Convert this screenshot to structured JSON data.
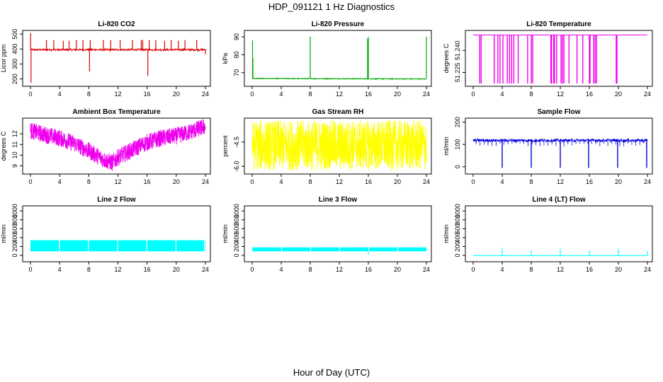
{
  "figure": {
    "title": "HDP_091121  1 Hz Diagnostics",
    "xlabel": "Hour of Day (UTC)"
  },
  "chart_data": [
    {
      "type": "line",
      "title": "Li-820 CO2",
      "ylabel": "Licor ppm",
      "color": "#dd0000",
      "xlim": [
        0,
        24
      ],
      "ylim": [
        170,
        505
      ],
      "xticks": [
        "0",
        "4",
        "8",
        "12",
        "16",
        "20",
        "24"
      ],
      "yticks": [
        {
          "v": 200,
          "l": "200"
        },
        {
          "v": 300,
          "l": "300"
        },
        {
          "v": 400,
          "l": "400"
        },
        {
          "v": 500,
          "l": "500"
        }
      ],
      "series": [
        {
          "baseline": 395,
          "noise": 6,
          "trend": 0,
          "spikes": [
            [
              0.02,
              505
            ],
            [
              0.08,
              175
            ],
            [
              2.2,
              460
            ],
            [
              3.2,
              460
            ],
            [
              4.5,
              455
            ],
            [
              5.3,
              455
            ],
            [
              6.3,
              460
            ],
            [
              7.2,
              460
            ],
            [
              8.1,
              250
            ],
            [
              8.2,
              460
            ],
            [
              10.0,
              460
            ],
            [
              11.0,
              460
            ],
            [
              12.3,
              460
            ],
            [
              14.0,
              460
            ],
            [
              15.2,
              460
            ],
            [
              15.4,
              460
            ],
            [
              16.1,
              220
            ],
            [
              16.3,
              460
            ],
            [
              17.2,
              460
            ],
            [
              18.4,
              455
            ],
            [
              19.3,
              460
            ],
            [
              20.3,
              455
            ],
            [
              21.2,
              460
            ],
            [
              22.8,
              460
            ],
            [
              24.0,
              365
            ]
          ]
        }
      ]
    },
    {
      "type": "line",
      "title": "Li-820 Pressure",
      "ylabel": "kPa",
      "color": "#00aa00",
      "xlim": [
        0,
        24
      ],
      "ylim": [
        64,
        92
      ],
      "xticks": [
        "0",
        "4",
        "8",
        "12",
        "16",
        "20",
        "24"
      ],
      "yticks": [
        {
          "v": 70,
          "l": "70"
        },
        {
          "v": 80,
          "l": "80"
        },
        {
          "v": 90,
          "l": "90"
        }
      ],
      "series": [
        {
          "baseline": 66.8,
          "noise": 0.25,
          "trend": -0.3,
          "spikes": [
            [
              0.05,
              88
            ],
            [
              0.1,
              78
            ],
            [
              8.0,
              90
            ],
            [
              15.9,
              89
            ],
            [
              16.0,
              90
            ],
            [
              24.0,
              90
            ]
          ]
        }
      ]
    },
    {
      "type": "line",
      "title": "Li-820 Temperature",
      "ylabel": "degrees C",
      "color": "#ee00ee",
      "xlim": [
        0,
        24
      ],
      "ylim": [
        51.2175,
        51.2517
      ],
      "xticks": [
        "0",
        "4",
        "8",
        "12",
        "16",
        "20",
        "24"
      ],
      "yticks": [
        {
          "v": 51.225,
          "l": "51.225"
        },
        {
          "v": 51.24,
          "l": "51.240"
        }
      ],
      "series": [
        {
          "baseline": 51.2505,
          "noise": 5e-05,
          "trend": 0,
          "dips": [
            0.9,
            1.1,
            2.9,
            3.4,
            3.7,
            4.1,
            4.7,
            5.0,
            5.3,
            5.6,
            6.2,
            7.5,
            8.0,
            8.2,
            10.7,
            10.8,
            11.1,
            11.2,
            11.5,
            12.1,
            12.3,
            12.5,
            13.2,
            14.3,
            15.1,
            16.0,
            16.1,
            16.6,
            16.8,
            17.0,
            19.7,
            19.8
          ],
          "dipTo": 51.2175
        }
      ]
    },
    {
      "type": "line",
      "title": "Ambient Box Temperature",
      "ylabel": "degrees C",
      "color": "#ee00ee",
      "xlim": [
        0,
        24
      ],
      "ylim": [
        8.5,
        13.2
      ],
      "xticks": [
        "0",
        "4",
        "8",
        "12",
        "16",
        "20",
        "24"
      ],
      "yticks": [
        {
          "v": 9,
          "l": "9"
        },
        {
          "v": 10,
          "l": "10"
        },
        {
          "v": 11,
          "l": "11"
        },
        {
          "v": 12,
          "l": "12"
        }
      ],
      "series": [
        {
          "profile": [
            [
              0,
              12.3
            ],
            [
              2,
              11.9
            ],
            [
              4,
              11.6
            ],
            [
              6,
              11.1
            ],
            [
              8,
              10.4
            ],
            [
              10,
              9.6
            ],
            [
              11.2,
              9.3
            ],
            [
              12,
              9.8
            ],
            [
              14,
              10.5
            ],
            [
              16,
              11.2
            ],
            [
              18,
              11.6
            ],
            [
              20,
              11.8
            ],
            [
              22,
              12.2
            ],
            [
              24,
              12.7
            ]
          ],
          "noise": 0.8
        }
      ]
    },
    {
      "type": "line",
      "title": "Gas Stream RH",
      "ylabel": "percent",
      "color": "#ffff00",
      "xlim": [
        0,
        24
      ],
      "ylim": [
        -6.3,
        -3.2
      ],
      "xticks": [
        "0",
        "4",
        "8",
        "12",
        "16",
        "20",
        "24"
      ],
      "yticks": [
        {
          "v": -6.0,
          "l": "-6.0"
        },
        {
          "v": -4.5,
          "l": "-4.5"
        }
      ],
      "series": [
        {
          "profile": [
            [
              0,
              -4.7
            ],
            [
              24,
              -4.7
            ]
          ],
          "noise": 1.55
        }
      ]
    },
    {
      "type": "line",
      "title": "Sample Flow",
      "ylabel": "ml/min",
      "color": "#0000dd",
      "xlim": [
        0,
        24
      ],
      "ylim": [
        -20,
        205
      ],
      "xticks": [
        "0",
        "4",
        "8",
        "12",
        "16",
        "20",
        "24"
      ],
      "yticks": [
        {
          "v": 0,
          "l": "0"
        },
        {
          "v": 100,
          "l": "100"
        },
        {
          "v": 200,
          "l": "200"
        }
      ],
      "series": [
        {
          "baseline": 118,
          "noise": 6,
          "trend": 0,
          "dips": [
            4.0,
            8.0,
            12.0,
            15.9,
            19.9,
            23.9
          ],
          "dipTo": -5,
          "minor": 90
        }
      ]
    },
    {
      "type": "line",
      "title": "Line 2 Flow",
      "ylabel": "ml/min",
      "color": "#00ffff",
      "xlim": [
        0,
        24
      ],
      "ylim": [
        -80,
        1050
      ],
      "xticks": [
        "0",
        "4",
        "8",
        "12",
        "16",
        "20",
        "24"
      ],
      "yticks": [
        {
          "v": 0,
          "l": "0"
        },
        {
          "v": 200,
          "l": "200"
        },
        {
          "v": 400,
          "l": "400"
        },
        {
          "v": 600,
          "l": "600"
        },
        {
          "v": 800,
          "l": "800"
        },
        {
          "v": 1000,
          "l": "1000"
        }
      ],
      "series": [
        {
          "band": [
            90,
            340
          ],
          "gaps": [
            3.9,
            7.9,
            11.9,
            15.9,
            19.9,
            23.8
          ]
        }
      ]
    },
    {
      "type": "line",
      "title": "Line 3 Flow",
      "ylabel": "ml/min",
      "color": "#00ffff",
      "xlim": [
        0,
        24
      ],
      "ylim": [
        -80,
        1050
      ],
      "xticks": [
        "0",
        "4",
        "8",
        "12",
        "16",
        "20",
        "24"
      ],
      "yticks": [
        {
          "v": 0,
          "l": "0"
        },
        {
          "v": 200,
          "l": "200"
        },
        {
          "v": 400,
          "l": "400"
        },
        {
          "v": 600,
          "l": "600"
        },
        {
          "v": 800,
          "l": "800"
        },
        {
          "v": 1000,
          "l": "1000"
        }
      ],
      "series": [
        {
          "band": [
            90,
            180
          ],
          "gaps": [
            4.0,
            8.0,
            12.0,
            16.0,
            20.0
          ],
          "drop": [
            16.0,
            20
          ]
        }
      ]
    },
    {
      "type": "line",
      "title": "Line 4 (LT) Flow",
      "ylabel": "ml/min",
      "color": "#00ffff",
      "xlim": [
        0,
        24
      ],
      "ylim": [
        -80,
        1050
      ],
      "xticks": [
        "0",
        "4",
        "8",
        "12",
        "16",
        "20",
        "24"
      ],
      "yticks": [
        {
          "v": 0,
          "l": "0"
        },
        {
          "v": 200,
          "l": "200"
        },
        {
          "v": 400,
          "l": "400"
        },
        {
          "v": 600,
          "l": "600"
        },
        {
          "v": 800,
          "l": "800"
        },
        {
          "v": 1000,
          "l": "1000"
        }
      ],
      "series": [
        {
          "baseline": -5,
          "noise": 4,
          "trend": 0,
          "spikes": [
            [
              4.0,
              160
            ],
            [
              8.0,
              120
            ],
            [
              12.0,
              150
            ],
            [
              16.0,
              110
            ],
            [
              20.0,
              150
            ],
            [
              24.0,
              100
            ]
          ]
        }
      ]
    }
  ]
}
